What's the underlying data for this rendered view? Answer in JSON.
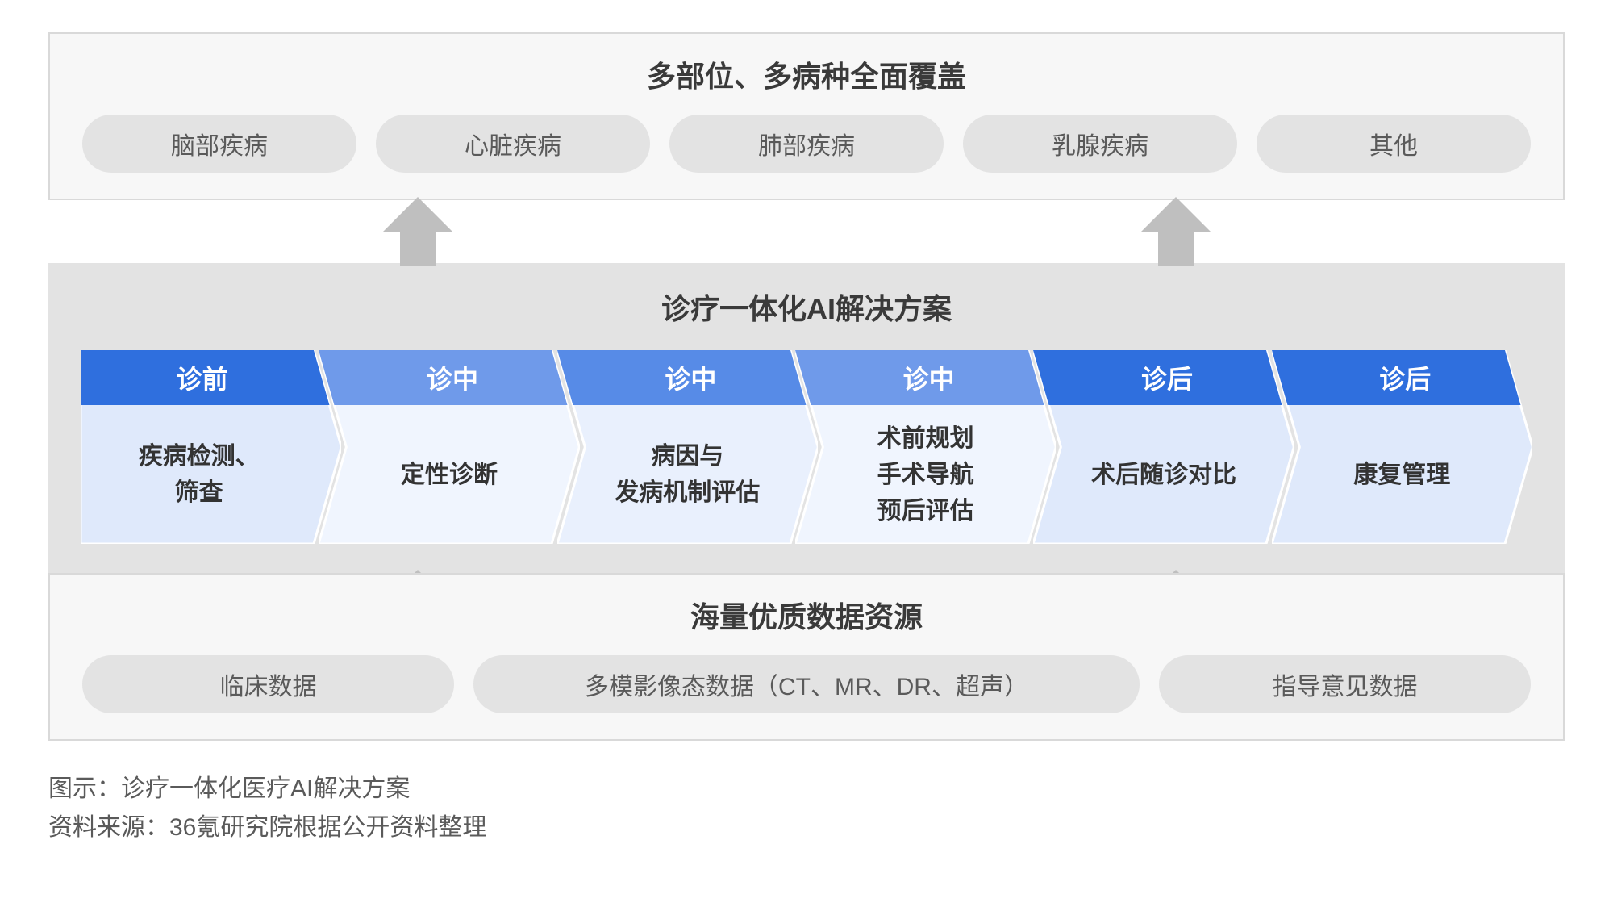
{
  "type": "infographic",
  "top_section": {
    "title": "多部位、多病种全面覆盖",
    "pills": [
      "脑部疾病",
      "心脏疾病",
      "肺部疾病",
      "乳腺疾病",
      "其他"
    ],
    "border_color": "#d9d9d9",
    "background_color": "#f7f7f7",
    "pill_bg": "#e3e3e3",
    "pill_text_color": "#5a5a5a",
    "title_fontsize": 36,
    "pill_fontsize": 30
  },
  "arrows": {
    "color": "#bfbfbf",
    "positions_pct": [
      22,
      72
    ]
  },
  "middle_section": {
    "title": "诊疗一体化AI解决方案",
    "background_color": "#e3e3e3",
    "title_fontsize": 36,
    "steps": [
      {
        "phase": "诊前",
        "body": "疾病检测、\n筛查",
        "header_color": "#2f6fde",
        "body_color": "#dfe9fb"
      },
      {
        "phase": "诊中",
        "body": "定性诊断",
        "header_color": "#6f9aea",
        "body_color": "#f0f5fe"
      },
      {
        "phase": "诊中",
        "body": "病因与\n发病机制评估",
        "header_color": "#578be7",
        "body_color": "#e9f0fd"
      },
      {
        "phase": "诊中",
        "body": "术前规划\n手术导航\n预后评估",
        "header_color": "#6f9aea",
        "body_color": "#f0f5fe"
      },
      {
        "phase": "诊后",
        "body": "术后随诊对比",
        "header_color": "#2f6fde",
        "body_color": "#dfe9fb"
      },
      {
        "phase": "诊后",
        "body": "康复管理",
        "header_color": "#2f6fde",
        "body_color": "#dfe9fb"
      }
    ],
    "header_text_color": "#ffffff",
    "body_text_color": "#333333",
    "phase_fontsize": 32,
    "body_fontsize": 30
  },
  "bottom_section": {
    "title": "海量优质数据资源",
    "pills": [
      {
        "label": "临床数据",
        "wide": false
      },
      {
        "label": "多模影像态数据（CT、MR、DR、超声）",
        "wide": true
      },
      {
        "label": "指导意见数据",
        "wide": false
      }
    ],
    "border_color": "#d9d9d9",
    "background_color": "#f7f7f7",
    "pill_bg": "#e3e3e3"
  },
  "footer": {
    "line1": "图示：诊疗一体化医疗AI解决方案",
    "line2": "资料来源：36氪研究院根据公开资料整理",
    "fontsize": 30,
    "color": "#5a5a5a"
  }
}
